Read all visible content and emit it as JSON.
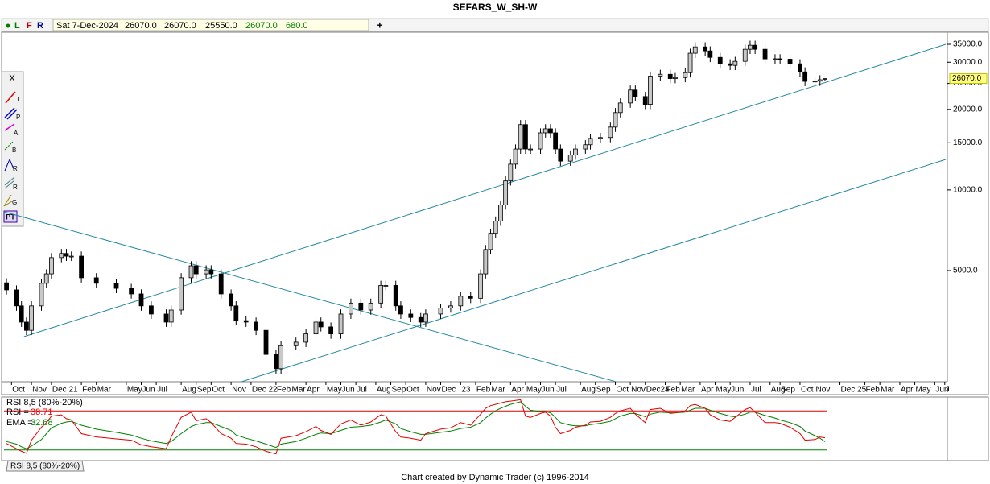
{
  "header": {
    "toolbar": [
      "L",
      "F",
      "R"
    ],
    "date": "Sat 7-Dec-2024",
    "open": "26070.0",
    "high": "26070.0",
    "low": "25550.0",
    "close": "26070.0",
    "volume": "680.0",
    "add": "+"
  },
  "tools": [
    "X",
    "T",
    "P",
    "A",
    "B",
    "R",
    "R",
    "G",
    "PT"
  ],
  "chart_data": [
    {
      "type": "candlestick",
      "title": "SEFARS_W_SH-W",
      "x": [
        0,
        2,
        3,
        4,
        5,
        7,
        8,
        9,
        11,
        12,
        13,
        15,
        18,
        22,
        25,
        27,
        29,
        32,
        33,
        35,
        37,
        38,
        40,
        41,
        43,
        45,
        46,
        48,
        50,
        52,
        54,
        55,
        58,
        60,
        62,
        63,
        65,
        67,
        69,
        71,
        73,
        75,
        76,
        78,
        79,
        81,
        83,
        84,
        87,
        89,
        91,
        93,
        95,
        96,
        97,
        98,
        99,
        100,
        101,
        102,
        103,
        104,
        105,
        107,
        108,
        109,
        110,
        111,
        113,
        114,
        116,
        117,
        119,
        121,
        122,
        123,
        125,
        126,
        128,
        129,
        131,
        133,
        134,
        136,
        137,
        138,
        140,
        141,
        143,
        145,
        146,
        148,
        149,
        150,
        152,
        154,
        155,
        157,
        159,
        160,
        162,
        163,
        164
      ],
      "open": [
        4500,
        4235,
        3690,
        3210,
        2990,
        3690,
        4480,
        4860,
        5590,
        5790,
        5660,
        5660,
        4700,
        4480,
        4290,
        4090,
        3690,
        3440,
        3210,
        3560,
        4700,
        5210,
        4860,
        5030,
        4860,
        4090,
        3690,
        3250,
        3210,
        2990,
        2430,
        2150,
        2620,
        2700,
        2900,
        3210,
        3080,
        2900,
        3440,
        3780,
        3560,
        3780,
        4400,
        4400,
        3690,
        3440,
        3340,
        3210,
        3440,
        3620,
        3690,
        4010,
        3940,
        4860,
        5990,
        6890,
        7650,
        8790,
        10810,
        12480,
        14220,
        17540,
        14220,
        14220,
        16340,
        16920,
        16340,
        14220,
        12810,
        13500,
        14220,
        14750,
        15580,
        15700,
        17170,
        19450,
        21130,
        23620,
        22340,
        20880,
        26620,
        27040,
        26070,
        26300,
        27420,
        32420,
        34240,
        33070,
        31280,
        29600,
        29200,
        30230,
        33540,
        34720,
        33540,
        30870,
        30900,
        30800,
        29600,
        27610,
        25450,
        25500,
        26070
      ],
      "high": [
        4680,
        4400,
        3840,
        3340,
        3840,
        4660,
        5050,
        5810,
        6020,
        6020,
        5890,
        5890,
        4890,
        4660,
        4460,
        4250,
        3840,
        3580,
        3700,
        4890,
        5420,
        5420,
        5230,
        5230,
        5050,
        4250,
        3840,
        3380,
        3340,
        3110,
        2530,
        2720,
        2810,
        3020,
        3340,
        3340,
        3200,
        3580,
        3930,
        3930,
        3930,
        4580,
        4580,
        4580,
        3840,
        3580,
        3470,
        3580,
        3760,
        3840,
        4170,
        4170,
        5050,
        6230,
        7170,
        7960,
        9140,
        11240,
        12980,
        14790,
        18240,
        18240,
        14790,
        16990,
        17600,
        17600,
        16990,
        14790,
        14040,
        14790,
        15340,
        16200,
        16330,
        17860,
        20230,
        21980,
        24560,
        24560,
        23230,
        27680,
        28120,
        28120,
        27350,
        28520,
        33720,
        35610,
        35610,
        34390,
        32530,
        30780,
        31440,
        34880,
        36110,
        36110,
        34880,
        32140,
        32140,
        32030,
        30780,
        28710,
        26520,
        26830,
        26070
      ],
      "low": [
        4070,
        3540,
        3080,
        2870,
        2870,
        3540,
        4300,
        4670,
        5370,
        5430,
        5430,
        4510,
        4300,
        4120,
        3930,
        3540,
        3300,
        3080,
        3080,
        3420,
        4510,
        4670,
        4670,
        4670,
        3930,
        3540,
        3120,
        3080,
        2870,
        2330,
        2060,
        2060,
        2520,
        2590,
        2780,
        2960,
        2780,
        2780,
        3300,
        3420,
        3420,
        3630,
        4220,
        3540,
        3300,
        3210,
        3080,
        3080,
        3300,
        3480,
        3540,
        3780,
        3780,
        4670,
        5750,
        6610,
        7340,
        8440,
        10380,
        11980,
        13650,
        13650,
        13650,
        13650,
        15690,
        15690,
        13650,
        12300,
        12300,
        12960,
        13650,
        14160,
        14960,
        15070,
        16480,
        18670,
        20280,
        21450,
        20040,
        20040,
        25560,
        25030,
        25030,
        25250,
        26320,
        31120,
        31750,
        30030,
        28420,
        28030,
        28030,
        29020,
        32200,
        32200,
        29640,
        29640,
        29570,
        28420,
        26510,
        24430,
        24430,
        24480,
        25550
      ],
      "close": [
        4235,
        3690,
        3210,
        2990,
        3690,
        4480,
        4860,
        5590,
        5790,
        5660,
        5660,
        4700,
        4480,
        4290,
        4090,
        3690,
        3440,
        3210,
        3560,
        4700,
        5210,
        4860,
        5030,
        4860,
        4090,
        3690,
        3250,
        3210,
        2990,
        2430,
        2150,
        2620,
        2700,
        2900,
        3210,
        3080,
        2900,
        3440,
        3780,
        3560,
        3780,
        4400,
        4400,
        3690,
        3440,
        3340,
        3210,
        3440,
        3620,
        3690,
        4010,
        3940,
        4860,
        5990,
        6890,
        7650,
        8790,
        10810,
        12480,
        14220,
        17540,
        14220,
        14220,
        16340,
        16920,
        16340,
        14220,
        12810,
        13500,
        14220,
        14750,
        15580,
        15700,
        17170,
        19450,
        21130,
        23620,
        22340,
        20880,
        26620,
        27040,
        26070,
        26300,
        27420,
        32420,
        34240,
        33070,
        31280,
        29600,
        29200,
        30230,
        33540,
        34720,
        33540,
        30870,
        30900,
        30800,
        29600,
        27610,
        25450,
        25500,
        25800,
        26070
      ],
      "up_color": "#c8c8c8",
      "down_color": "#000000",
      "log_scale": true,
      "xlim": [
        -0.5,
        188.2
      ],
      "ylim": [
        1922,
        38300
      ],
      "yticks": [
        {
          "value": 5000,
          "label": "5000.0"
        },
        {
          "value": 10000,
          "label": "10000.0"
        },
        {
          "value": 15000,
          "label": "15000.0"
        },
        {
          "value": 20000,
          "label": "20000.0"
        },
        {
          "value": 25000,
          "label": "25000.0"
        },
        {
          "value": 30000,
          "label": "30000.0"
        },
        {
          "value": 35000,
          "label": "35000.0"
        }
      ],
      "xticks": [
        {
          "value": 1,
          "label": "Oct"
        },
        {
          "value": 5,
          "label": "Nov"
        },
        {
          "value": 9,
          "label": "Dec 21"
        },
        {
          "value": 15,
          "label": "Feb"
        },
        {
          "value": 18,
          "label": "Mar"
        },
        {
          "value": 24,
          "label": "May"
        },
        {
          "value": 27,
          "label": "Jun"
        },
        {
          "value": 30,
          "label": "Jul"
        },
        {
          "value": 35,
          "label": "Aug"
        },
        {
          "value": 38,
          "label": "Sep"
        },
        {
          "value": 41,
          "label": "Oct"
        },
        {
          "value": 45,
          "label": "Nov"
        },
        {
          "value": 49,
          "label": "Dec 22"
        },
        {
          "value": 54,
          "label": "Feb"
        },
        {
          "value": 57,
          "label": "Mar"
        },
        {
          "value": 60,
          "label": "Apr"
        },
        {
          "value": 64,
          "label": "May"
        },
        {
          "value": 67,
          "label": "Jun"
        },
        {
          "value": 70,
          "label": "Jul"
        },
        {
          "value": 74,
          "label": "Aug"
        },
        {
          "value": 77,
          "label": "Sep"
        },
        {
          "value": 80,
          "label": "Oct"
        },
        {
          "value": 84,
          "label": "Nov"
        },
        {
          "value": 87,
          "label": "Dec"
        },
        {
          "value": 91,
          "label": "23"
        },
        {
          "value": 94,
          "label": "Feb"
        },
        {
          "value": 97,
          "label": "Mar"
        },
        {
          "value": 101,
          "label": "Apr"
        },
        {
          "value": 104,
          "label": "May"
        },
        {
          "value": 107,
          "label": "Jun"
        },
        {
          "value": 110,
          "label": "Jul"
        },
        {
          "value": 115,
          "label": "Aug"
        },
        {
          "value": 118,
          "label": "Sep"
        },
        {
          "value": 122,
          "label": "Oct"
        },
        {
          "value": 125,
          "label": "Nov"
        },
        {
          "value": 128,
          "label": "Dec24"
        },
        {
          "value": 132,
          "label": "Feb"
        },
        {
          "value": 135,
          "label": "Mar"
        },
        {
          "value": 139,
          "label": "Apr"
        },
        {
          "value": 142,
          "label": "May"
        },
        {
          "value": 145,
          "label": "Jun"
        },
        {
          "value": 149,
          "label": "Jul"
        },
        {
          "value": 153,
          "label": "Aug"
        },
        {
          "value": 155,
          "label": "Sep"
        },
        {
          "value": 159,
          "label": "Oct"
        },
        {
          "value": 162,
          "label": "Nov"
        },
        {
          "value": 167,
          "label": "Dec 25"
        },
        {
          "value": 172,
          "label": "Feb"
        },
        {
          "value": 175,
          "label": "Mar"
        },
        {
          "value": 179,
          "label": "Apr"
        },
        {
          "value": 182,
          "label": "May"
        },
        {
          "value": 186,
          "label": "Jun"
        },
        {
          "value": 188,
          "label": "J"
        }
      ],
      "trend_color": "#2389a0",
      "trend_lines": [
        {
          "x": [
            3.5,
            188.2
          ],
          "y": [
            2833,
            35000
          ]
        },
        {
          "x": [
            47.1,
            188.2
          ],
          "y": [
            1922,
            13000
          ]
        },
        {
          "x": [
            -0.5,
            122.1
          ],
          "y": [
            8290,
            1922
          ]
        }
      ],
      "last_price": {
        "value": 26070,
        "label": "26070.0"
      }
    },
    {
      "type": "line",
      "title": "RSI 8,5 (80%-20%)",
      "x": [
        0,
        2,
        3,
        4,
        5,
        7,
        8,
        9,
        11,
        12,
        13,
        15,
        18,
        22,
        25,
        27,
        29,
        32,
        33,
        35,
        37,
        38,
        40,
        41,
        43,
        45,
        46,
        48,
        50,
        52,
        54,
        55,
        58,
        60,
        62,
        63,
        65,
        67,
        69,
        71,
        73,
        75,
        76,
        78,
        79,
        81,
        83,
        84,
        87,
        89,
        91,
        93,
        95,
        96,
        97,
        98,
        99,
        100,
        101,
        102,
        103,
        104,
        105,
        107,
        108,
        109,
        110,
        111,
        113,
        114,
        116,
        117,
        119,
        121,
        122,
        123,
        125,
        126,
        128,
        129,
        131,
        133,
        134,
        136,
        137,
        138,
        140,
        141,
        143,
        145,
        146,
        148,
        149,
        150,
        152,
        154,
        155,
        157,
        159,
        160,
        162,
        163,
        164
      ],
      "xlim": [
        -0.5,
        188.2
      ],
      "ylim": [
        0,
        100
      ],
      "levels": [
        {
          "value": 80,
          "color": "#e00000"
        },
        {
          "value": 20,
          "color": "#008000"
        }
      ],
      "series": [
        {
          "name": "RSI =",
          "color": "#e00000",
          "values": [
            30,
            22,
            18,
            15,
            35,
            55,
            62,
            72,
            74,
            68,
            66,
            45,
            40,
            37,
            35,
            28,
            25,
            22,
            40,
            70,
            78,
            65,
            68,
            62,
            45,
            38,
            30,
            29,
            25,
            18,
            14,
            38,
            42,
            48,
            56,
            50,
            44,
            60,
            66,
            58,
            63,
            74,
            72,
            48,
            40,
            38,
            35,
            45,
            52,
            54,
            62,
            58,
            75,
            84,
            88,
            90,
            92,
            94,
            95,
            96,
            97,
            72,
            70,
            76,
            78,
            72,
            55,
            45,
            50,
            55,
            58,
            63,
            64,
            70,
            76,
            80,
            84,
            75,
            62,
            82,
            84,
            76,
            77,
            80,
            88,
            90,
            84,
            74,
            66,
            64,
            70,
            82,
            85,
            78,
            62,
            62,
            61,
            55,
            45,
            35,
            36,
            40,
            38.71
          ]
        },
        {
          "name": "EMA =",
          "color": "#008000",
          "values": [
            33,
            29,
            25,
            22,
            26,
            36,
            45,
            54,
            61,
            63,
            64,
            58,
            52,
            47,
            43,
            38,
            34,
            30,
            33,
            45,
            56,
            59,
            62,
            62,
            56,
            50,
            43,
            38,
            34,
            29,
            24,
            29,
            33,
            38,
            44,
            46,
            45,
            50,
            55,
            56,
            58,
            63,
            66,
            60,
            53,
            48,
            44,
            44,
            47,
            49,
            53,
            55,
            62,
            69,
            75,
            80,
            84,
            87,
            90,
            92,
            94,
            87,
            81,
            79,
            79,
            77,
            70,
            62,
            58,
            57,
            57,
            59,
            61,
            64,
            68,
            72,
            76,
            76,
            71,
            75,
            78,
            77,
            77,
            78,
            81,
            84,
            84,
            81,
            76,
            72,
            71,
            75,
            78,
            78,
            73,
            69,
            66,
            62,
            56,
            49,
            42,
            38,
            32.68
          ]
        }
      ]
    }
  ],
  "tabs": [
    "RSI 8,5 (80%-20%)"
  ],
  "footer": "Chart created by Dynamic Trader  (c) 1996-2014"
}
